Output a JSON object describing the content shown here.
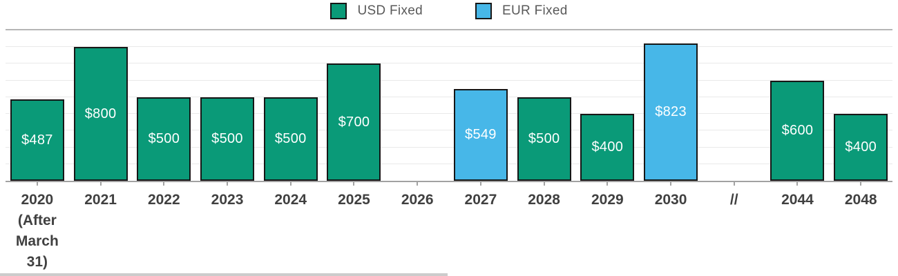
{
  "chart_data": {
    "type": "bar",
    "title": "",
    "xlabel": "",
    "ylabel": "",
    "ylim": [
      0,
      900
    ],
    "gridline_step": 100,
    "grid": true,
    "legend_position": "top-center",
    "axis_break_label": "//",
    "legend": [
      {
        "label": "USD Fixed",
        "color": "#0a9a78"
      },
      {
        "label": "EUR Fixed",
        "color": "#47b7e8"
      }
    ],
    "bar_border_color": "#161616",
    "categories": [
      {
        "tick": "2020\n(After\nMarch\n31)",
        "value": 487,
        "label": "$487",
        "series": "USD Fixed"
      },
      {
        "tick": "2021",
        "value": 800,
        "label": "$800",
        "series": "USD Fixed"
      },
      {
        "tick": "2022",
        "value": 500,
        "label": "$500",
        "series": "USD Fixed"
      },
      {
        "tick": "2023",
        "value": 500,
        "label": "$500",
        "series": "USD Fixed"
      },
      {
        "tick": "2024",
        "value": 500,
        "label": "$500",
        "series": "USD Fixed"
      },
      {
        "tick": "2025",
        "value": 700,
        "label": "$700",
        "series": "USD Fixed"
      },
      {
        "tick": "2026",
        "value": null,
        "label": "",
        "series": ""
      },
      {
        "tick": "2027",
        "value": 549,
        "label": "$549",
        "series": "EUR Fixed"
      },
      {
        "tick": "2028",
        "value": 500,
        "label": "$500",
        "series": "USD Fixed"
      },
      {
        "tick": "2029",
        "value": 400,
        "label": "$400",
        "series": "USD Fixed"
      },
      {
        "tick": "2030",
        "value": 823,
        "label": "$823",
        "series": "EUR Fixed"
      },
      {
        "tick": "//",
        "value": null,
        "label": "",
        "series": ""
      },
      {
        "tick": "2044",
        "value": 600,
        "label": "$600",
        "series": "USD Fixed"
      },
      {
        "tick": "2048",
        "value": 400,
        "label": "$400",
        "series": "USD Fixed"
      }
    ]
  }
}
